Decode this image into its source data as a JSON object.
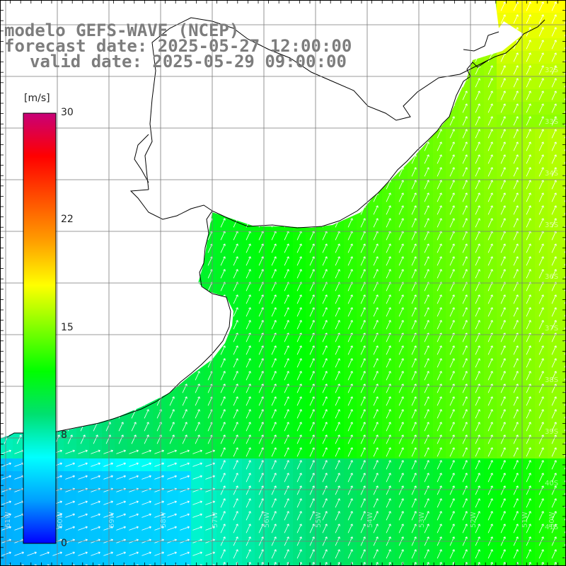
{
  "header": {
    "line1": "modelo GEFS-WAVE (NCEP)",
    "line2": "forecast date: 2025-05-27 12:00:00",
    "line3": "valid date: 2025-05-29 09:00:00"
  },
  "colorbar": {
    "unit": "[m/s]",
    "ticks": [
      "30",
      "22",
      "15",
      "8",
      "0"
    ],
    "tick_values": [
      30,
      22,
      15,
      8,
      0
    ],
    "range": [
      0,
      30
    ],
    "colors": [
      "#0000ff",
      "#00a0ff",
      "#00ffff",
      "#00e070",
      "#00ff00",
      "#80ff00",
      "#ffff00",
      "#ffa000",
      "#ff5000",
      "#ff0000",
      "#c80078"
    ]
  },
  "latitude_labels": [
    "32S",
    "33S",
    "34S",
    "35S",
    "36S",
    "37S",
    "38S",
    "39S",
    "40S",
    "41S"
  ],
  "longitude_labels": [
    "61W",
    "60W",
    "59W",
    "58W",
    "57W",
    "56W",
    "55W",
    "54W",
    "53W",
    "52W",
    "51W",
    "50W"
  ],
  "map": {
    "land_color": "#ffffff",
    "coast_color": "#000000",
    "grid_color": "#7a7a7a",
    "arrow_color": "#ffffff"
  }
}
